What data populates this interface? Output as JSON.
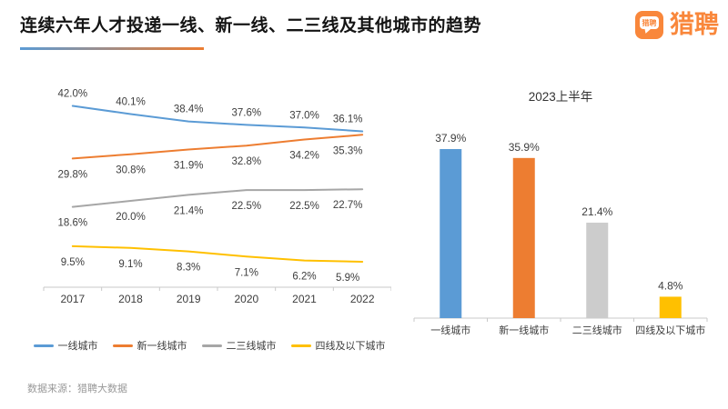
{
  "header": {
    "title": "连续六年人才投递一线、新一线、二三线及其他城市的趋势",
    "underline_colors": [
      "#5B9BD5",
      "#ED7D31"
    ]
  },
  "logo": {
    "wordmark": "猎聘",
    "icon_text": "猎聘",
    "brand_color": "#F9873B"
  },
  "footer": {
    "source": "数据来源：猎聘大数据"
  },
  "chart_data": [
    {
      "type": "line",
      "title": "",
      "x": [
        "2017",
        "2018",
        "2019",
        "2020",
        "2021",
        "2022"
      ],
      "series": [
        {
          "name": "一线城市",
          "color": "#5B9BD5",
          "label_position": "above",
          "values": [
            42.0,
            40.1,
            38.4,
            37.6,
            37.0,
            36.1
          ]
        },
        {
          "name": "新一线城市",
          "color": "#ED7D31",
          "label_position": "below",
          "values": [
            29.8,
            30.8,
            31.9,
            32.8,
            34.2,
            35.3
          ]
        },
        {
          "name": "二三线城市",
          "color": "#A6A6A6",
          "label_position": "below",
          "values": [
            18.6,
            20.0,
            21.4,
            22.5,
            22.5,
            22.7
          ]
        },
        {
          "name": "四线及以下城市",
          "color": "#FFC000",
          "label_position": "below",
          "values": [
            9.5,
            9.1,
            8.3,
            7.1,
            6.2,
            5.9
          ]
        }
      ],
      "ylim": [
        0,
        48
      ],
      "grid": false,
      "legend_position": "bottom",
      "value_suffix": "%"
    },
    {
      "type": "bar",
      "title": "2023上半年",
      "categories": [
        "一线城市",
        "新一线城市",
        "二三线城市",
        "四线及以下城市"
      ],
      "values": [
        37.9,
        35.9,
        21.4,
        4.8
      ],
      "bar_colors": [
        "#5B9BD5",
        "#ED7D31",
        "#CCCCCC",
        "#FFC000"
      ],
      "ylim": [
        0,
        54
      ],
      "grid": false,
      "value_suffix": "%"
    }
  ]
}
